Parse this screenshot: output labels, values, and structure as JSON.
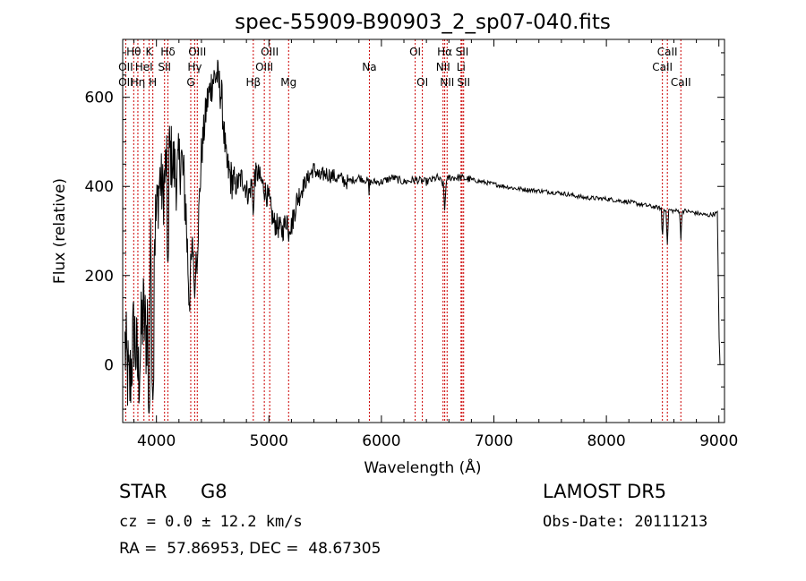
{
  "chart_data": {
    "type": "line",
    "title": "spec-55909-B90903_2_sp07-040.fits",
    "xlabel": "Wavelength (Å)",
    "ylabel": "Flux (relative)",
    "xlim": [
      3700,
      9050
    ],
    "ylim": [
      -130,
      730
    ],
    "xticks": [
      4000,
      5000,
      6000,
      7000,
      8000,
      9000
    ],
    "yticks": [
      0,
      200,
      400,
      600
    ],
    "grid": false,
    "line_color": "#000000",
    "marker_color": "#cc0000",
    "spectrum_anchors": [
      [
        3720,
        40
      ],
      [
        3760,
        -60
      ],
      [
        3800,
        80
      ],
      [
        3840,
        -30
      ],
      [
        3880,
        120
      ],
      [
        3910,
        60
      ],
      [
        3950,
        240
      ],
      [
        3990,
        310
      ],
      [
        4030,
        420
      ],
      [
        4060,
        380
      ],
      [
        4100,
        490
      ],
      [
        4140,
        460
      ],
      [
        4180,
        420
      ],
      [
        4220,
        470
      ],
      [
        4260,
        360
      ],
      [
        4290,
        160
      ],
      [
        4320,
        260
      ],
      [
        4360,
        240
      ],
      [
        4400,
        470
      ],
      [
        4450,
        590
      ],
      [
        4500,
        640
      ],
      [
        4540,
        650
      ],
      [
        4580,
        600
      ],
      [
        4620,
        450
      ],
      [
        4660,
        420
      ],
      [
        4700,
        400
      ],
      [
        4760,
        420
      ],
      [
        4820,
        380
      ],
      [
        4860,
        420
      ],
      [
        4900,
        430
      ],
      [
        4950,
        400
      ],
      [
        5000,
        370
      ],
      [
        5040,
        320
      ],
      [
        5080,
        310
      ],
      [
        5120,
        300
      ],
      [
        5160,
        330
      ],
      [
        5200,
        310
      ],
      [
        5250,
        370
      ],
      [
        5300,
        400
      ],
      [
        5350,
        420
      ],
      [
        5400,
        440
      ],
      [
        5450,
        420
      ],
      [
        5500,
        430
      ],
      [
        5600,
        420
      ],
      [
        5700,
        410
      ],
      [
        5800,
        420
      ],
      [
        5900,
        410
      ],
      [
        6000,
        410
      ],
      [
        6100,
        420
      ],
      [
        6200,
        410
      ],
      [
        6300,
        415
      ],
      [
        6400,
        410
      ],
      [
        6500,
        420
      ],
      [
        6563,
        400
      ],
      [
        6600,
        420
      ],
      [
        6700,
        420
      ],
      [
        6800,
        415
      ],
      [
        6900,
        410
      ],
      [
        7000,
        405
      ],
      [
        7200,
        395
      ],
      [
        7400,
        390
      ],
      [
        7600,
        385
      ],
      [
        7800,
        375
      ],
      [
        8000,
        372
      ],
      [
        8200,
        365
      ],
      [
        8400,
        355
      ],
      [
        8500,
        350
      ],
      [
        8600,
        345
      ],
      [
        8700,
        345
      ],
      [
        8800,
        340
      ],
      [
        8900,
        335
      ],
      [
        8990,
        340
      ]
    ],
    "spectrum_dips": [
      [
        3934,
        -120
      ],
      [
        3968,
        -80
      ],
      [
        4102,
        220
      ],
      [
        4340,
        150
      ],
      [
        4861,
        330
      ],
      [
        5175,
        270
      ],
      [
        5890,
        380
      ],
      [
        6563,
        340
      ],
      [
        8498,
        280
      ],
      [
        8542,
        270
      ],
      [
        8662,
        280
      ]
    ],
    "line_markers": [
      {
        "name": "Hθ",
        "wavelength": 3798,
        "row": 1
      },
      {
        "name": "OII",
        "wavelength": 3727,
        "row": 2
      },
      {
        "name": "OII",
        "wavelength": 3727,
        "row": 3
      },
      {
        "name": "Hη",
        "wavelength": 3835,
        "row": 3
      },
      {
        "name": "K",
        "wavelength": 3934,
        "row": 1
      },
      {
        "name": "HeI",
        "wavelength": 3889,
        "row": 2
      },
      {
        "name": "H",
        "wavelength": 3968,
        "row": 3
      },
      {
        "name": "Hδ",
        "wavelength": 4102,
        "row": 1
      },
      {
        "name": "SII",
        "wavelength": 4072,
        "row": 2
      },
      {
        "name": "OIII",
        "wavelength": 4363,
        "row": 1
      },
      {
        "name": "Hγ",
        "wavelength": 4340,
        "row": 2
      },
      {
        "name": "G",
        "wavelength": 4305,
        "row": 3
      },
      {
        "name": "Hβ",
        "wavelength": 4861,
        "row": 3
      },
      {
        "name": "OIII",
        "wavelength": 5007,
        "row": 1
      },
      {
        "name": "OIII",
        "wavelength": 4959,
        "row": 2
      },
      {
        "name": "Mg",
        "wavelength": 5175,
        "row": 3
      },
      {
        "name": "Na",
        "wavelength": 5893,
        "row": 2
      },
      {
        "name": "OI",
        "wavelength": 6300,
        "row": 1
      },
      {
        "name": "OI",
        "wavelength": 6364,
        "row": 3
      },
      {
        "name": "Hα",
        "wavelength": 6563,
        "row": 1
      },
      {
        "name": "NII",
        "wavelength": 6548,
        "row": 2
      },
      {
        "name": "NII",
        "wavelength": 6584,
        "row": 3
      },
      {
        "name": "SII",
        "wavelength": 6717,
        "row": 1
      },
      {
        "name": "Li",
        "wavelength": 6708,
        "row": 2
      },
      {
        "name": "SII",
        "wavelength": 6731,
        "row": 3
      },
      {
        "name": "CaII",
        "wavelength": 8542,
        "row": 1
      },
      {
        "name": "CaII",
        "wavelength": 8498,
        "row": 2
      },
      {
        "name": "CaII",
        "wavelength": 8662,
        "row": 3
      }
    ]
  },
  "info": {
    "object_type": "STAR",
    "object_class": "G8",
    "cz": "cz = 0.0 ± 12.2 km/s",
    "radec": "RA =  57.86953, DEC =  48.67305",
    "survey": "LAMOST DR5",
    "obs_date": "Obs-Date: 20111213"
  }
}
